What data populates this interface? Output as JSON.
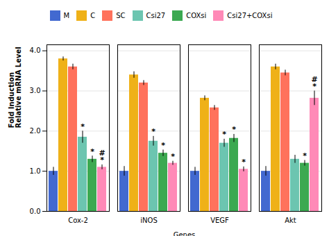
{
  "chart_data": {
    "type": "bar",
    "categories": [
      "Cox-2",
      "iNOS",
      "VEGF",
      "Akt"
    ],
    "series": [
      {
        "name": "M",
        "values": [
          1.0,
          1.0,
          1.0,
          1.0
        ],
        "errors": [
          0.1,
          0.12,
          0.1,
          0.12
        ]
      },
      {
        "name": "C",
        "values": [
          3.8,
          3.4,
          2.82,
          3.6
        ],
        "errors": [
          0.05,
          0.08,
          0.06,
          0.07
        ]
      },
      {
        "name": "SC",
        "values": [
          3.6,
          3.2,
          2.58,
          3.45
        ],
        "errors": [
          0.07,
          0.06,
          0.06,
          0.07
        ]
      },
      {
        "name": "Csi27",
        "values": [
          1.85,
          1.75,
          1.7,
          1.3
        ],
        "errors": [
          0.15,
          0.12,
          0.1,
          0.1
        ]
      },
      {
        "name": "COXsi",
        "values": [
          1.3,
          1.45,
          1.82,
          1.2
        ],
        "errors": [
          0.08,
          0.08,
          0.1,
          0.07
        ]
      },
      {
        "name": "Csi27+COXsi",
        "values": [
          1.1,
          1.2,
          1.05,
          2.82
        ],
        "errors": [
          0.06,
          0.05,
          0.06,
          0.18
        ]
      }
    ],
    "annotations": [
      {
        "category": "Cox-2",
        "series": "Csi27",
        "text": "*"
      },
      {
        "category": "Cox-2",
        "series": "COXsi",
        "text": "*"
      },
      {
        "category": "Cox-2",
        "series": "Csi27+COXsi",
        "text": "*"
      },
      {
        "category": "Cox-2",
        "series": "Csi27+COXsi",
        "text": "#"
      },
      {
        "category": "iNOS",
        "series": "Csi27",
        "text": "*"
      },
      {
        "category": "iNOS",
        "series": "COXsi",
        "text": "*"
      },
      {
        "category": "iNOS",
        "series": "Csi27+COXsi",
        "text": "*"
      },
      {
        "category": "VEGF",
        "series": "Csi27",
        "text": "*"
      },
      {
        "category": "VEGF",
        "series": "COXsi",
        "text": "*"
      },
      {
        "category": "VEGF",
        "series": "Csi27+COXsi",
        "text": "*"
      },
      {
        "category": "Akt",
        "series": "COXsi",
        "text": "*"
      },
      {
        "category": "Akt",
        "series": "Csi27+COXsi",
        "text": "*"
      },
      {
        "category": "Akt",
        "series": "Csi27+COXsi",
        "text": "#"
      }
    ],
    "xlabel": "Genes",
    "ylabel": "Fold Induction\nRelative mRNA Level",
    "ylim": [
      0,
      4.15
    ],
    "yticks": [
      0,
      1,
      2,
      3,
      4
    ],
    "grid": true,
    "legend": "top"
  }
}
